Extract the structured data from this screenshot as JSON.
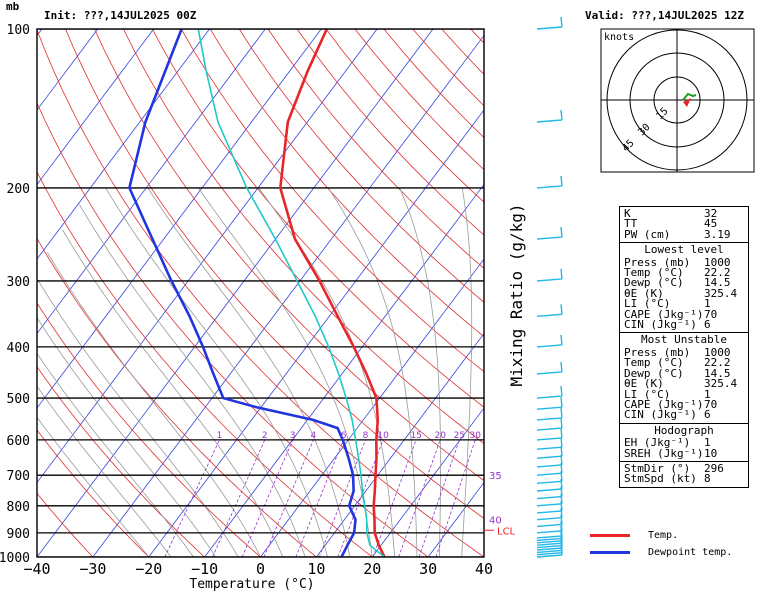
{
  "header": {
    "init_label": "Init: ???,14JUL2025 00Z",
    "valid_label": "Valid: ???,14JUL2025 12Z",
    "pressure_unit": "mb"
  },
  "chart_data": {
    "type": "line",
    "title": "",
    "xlabel": "Temperature (°C)",
    "ylabel": "Mixing Ratio (g/kg)",
    "xlim": [
      -40,
      40
    ],
    "ylim": [
      1000,
      100
    ],
    "y_scale": "log",
    "x_ticks": [
      "−40",
      "−30",
      "−20",
      "−10",
      "0",
      "10",
      "20",
      "30",
      "40"
    ],
    "pressure_ticks": [
      "100",
      "200",
      "300",
      "400",
      "500",
      "600",
      "700",
      "800",
      "900",
      "1000"
    ],
    "mixing_ratio_labels": [
      "1",
      "2",
      "3",
      "4",
      "6",
      "8",
      "10",
      "15",
      "20",
      "25",
      "30"
    ],
    "lcl_label": "LCL",
    "right_labels": [
      "35",
      "40"
    ],
    "series": [
      {
        "name": "Temp.",
        "color": "#e8262a",
        "points": [
          [
            1000,
            22.2
          ],
          [
            950,
            19.6
          ],
          [
            900,
            17.2
          ],
          [
            850,
            15.4
          ],
          [
            800,
            13.4
          ],
          [
            750,
            11.6
          ],
          [
            700,
            9.6
          ],
          [
            650,
            7.5
          ],
          [
            600,
            5.0
          ],
          [
            550,
            2.6
          ],
          [
            500,
            -0.6
          ],
          [
            450,
            -5.6
          ],
          [
            400,
            -11.5
          ],
          [
            350,
            -18.5
          ],
          [
            300,
            -26.5
          ],
          [
            250,
            -36.5
          ],
          [
            200,
            -46.0
          ],
          [
            150,
            -53.5
          ],
          [
            120,
            -56.8
          ],
          [
            100,
            -59.0
          ]
        ]
      },
      {
        "name": "Dewpoint temp.",
        "color": "#2035e0",
        "points": [
          [
            1000,
            14.5
          ],
          [
            950,
            14.0
          ],
          [
            900,
            13.5
          ],
          [
            850,
            12.0
          ],
          [
            800,
            9.0
          ],
          [
            750,
            7.8
          ],
          [
            700,
            5.6
          ],
          [
            650,
            2.5
          ],
          [
            600,
            -1.0
          ],
          [
            570,
            -3.5
          ],
          [
            550,
            -9.0
          ],
          [
            520,
            -21.0
          ],
          [
            500,
            -28.0
          ],
          [
            450,
            -33.0
          ],
          [
            400,
            -38.5
          ],
          [
            350,
            -45.0
          ],
          [
            300,
            -53.0
          ],
          [
            250,
            -62.0
          ],
          [
            200,
            -73.0
          ],
          [
            150,
            -79.0
          ],
          [
            100,
            -85.0
          ]
        ]
      },
      {
        "name": "",
        "color": "#20c8c8",
        "points": [
          [
            1000,
            22.2
          ],
          [
            950,
            18.0
          ],
          [
            900,
            15.8
          ],
          [
            850,
            14.0
          ],
          [
            800,
            11.8
          ],
          [
            750,
            9.4
          ],
          [
            700,
            7.0
          ],
          [
            650,
            4.3
          ],
          [
            600,
            1.3
          ],
          [
            550,
            -2.0
          ],
          [
            500,
            -6.0
          ],
          [
            450,
            -10.6
          ],
          [
            400,
            -16.0
          ],
          [
            350,
            -22.5
          ],
          [
            300,
            -30.5
          ],
          [
            250,
            -40.0
          ],
          [
            200,
            -52.0
          ],
          [
            150,
            -66.0
          ],
          [
            120,
            -75.0
          ],
          [
            100,
            -82.0
          ]
        ]
      }
    ],
    "winds_pressure": [
      1000,
      990,
      980,
      970,
      960,
      950,
      940,
      930,
      920,
      900,
      875,
      850,
      825,
      800,
      775,
      750,
      725,
      700,
      675,
      650,
      625,
      600,
      575,
      550,
      525,
      500,
      450,
      400,
      350,
      300,
      250,
      200,
      150,
      100
    ]
  },
  "hodograph": {
    "label": "knots",
    "ring_labels": [
      "15",
      "30",
      "45"
    ]
  },
  "indices": {
    "top": [
      {
        "label": "K",
        "value": "32"
      },
      {
        "label": "TT",
        "value": "45"
      },
      {
        "label": "PW (cm)",
        "value": "3.19"
      }
    ],
    "lowest": {
      "title": "Lowest level",
      "rows": [
        {
          "label": "Press (mb)",
          "value": "1000"
        },
        {
          "label": "Temp (°C)",
          "value": "22.2"
        },
        {
          "label": "Dewp (°C)",
          "value": "14.5"
        },
        {
          "label": "θE (K)",
          "value": "325.4"
        },
        {
          "label": "LI (°C)",
          "value": "1"
        },
        {
          "label": "CAPE (Jkg⁻¹)",
          "value": "70"
        },
        {
          "label": "CIN (Jkg⁻¹)",
          "value": "6"
        }
      ]
    },
    "unstable": {
      "title": "Most Unstable",
      "rows": [
        {
          "label": "Press (mb)",
          "value": "1000"
        },
        {
          "label": "Temp (°C)",
          "value": "22.2"
        },
        {
          "label": "Dewp (°C)",
          "value": "14.5"
        },
        {
          "label": "θE (K)",
          "value": "325.4"
        },
        {
          "label": "LI (°C)",
          "value": "1"
        },
        {
          "label": "CAPE (Jkg⁻¹)",
          "value": "70"
        },
        {
          "label": "CIN (Jkg⁻¹)",
          "value": "6"
        }
      ]
    },
    "hodo": {
      "title": "Hodograph",
      "rows": [
        {
          "label": "EH (Jkg⁻¹)",
          "value": "1"
        },
        {
          "label": "SREH (Jkg⁻¹)",
          "value": "10"
        }
      ]
    },
    "storm": {
      "rows": [
        {
          "label": "StmDir (°)",
          "value": "296"
        },
        {
          "label": "StmSpd (kt)",
          "value": "8"
        }
      ]
    }
  },
  "legend": [
    {
      "label": "Temp.",
      "color": "#e8262a"
    },
    {
      "label": "Dewpoint temp.",
      "color": "#2035e0"
    }
  ]
}
